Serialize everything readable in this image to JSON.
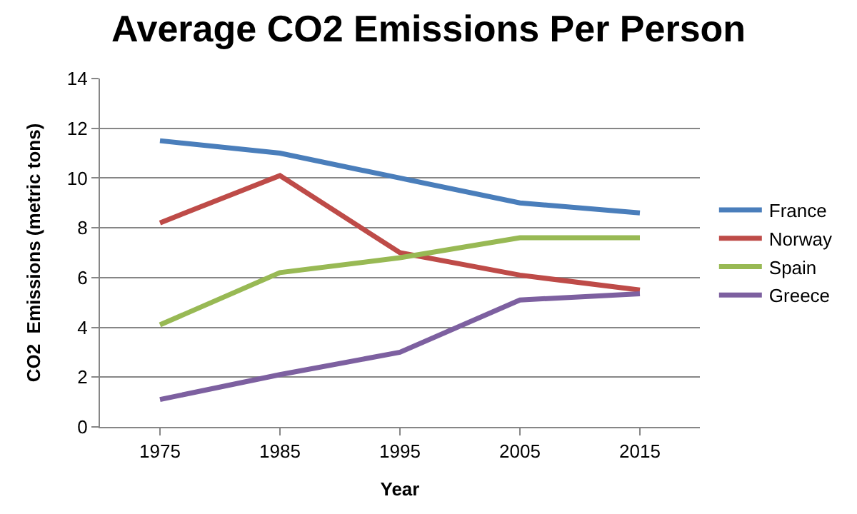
{
  "chart_data": {
    "type": "line",
    "title": "Average CO2 Emissions Per Person",
    "xlabel": "Year",
    "ylabel": "CO2  Emissions (metric tons)",
    "categories": [
      "1975",
      "1985",
      "1995",
      "2005",
      "2015"
    ],
    "series": [
      {
        "name": "France",
        "color": "#4a7ebb",
        "values": [
          11.5,
          11.0,
          10.0,
          9.0,
          8.6
        ]
      },
      {
        "name": "Norway",
        "color": "#be4b48",
        "values": [
          8.2,
          10.1,
          7.0,
          6.1,
          5.5
        ]
      },
      {
        "name": "Spain",
        "color": "#98b954",
        "values": [
          4.1,
          6.2,
          6.8,
          7.6,
          7.6
        ]
      },
      {
        "name": "Greece",
        "color": "#7d60a0",
        "values": [
          1.1,
          2.1,
          3.0,
          5.1,
          5.35
        ]
      }
    ],
    "ylim": [
      0,
      14
    ],
    "yticks": [
      0,
      2,
      4,
      6,
      8,
      10,
      12,
      14
    ],
    "grid": "y",
    "legend": "right",
    "marker": "none",
    "line_style": "solid"
  }
}
